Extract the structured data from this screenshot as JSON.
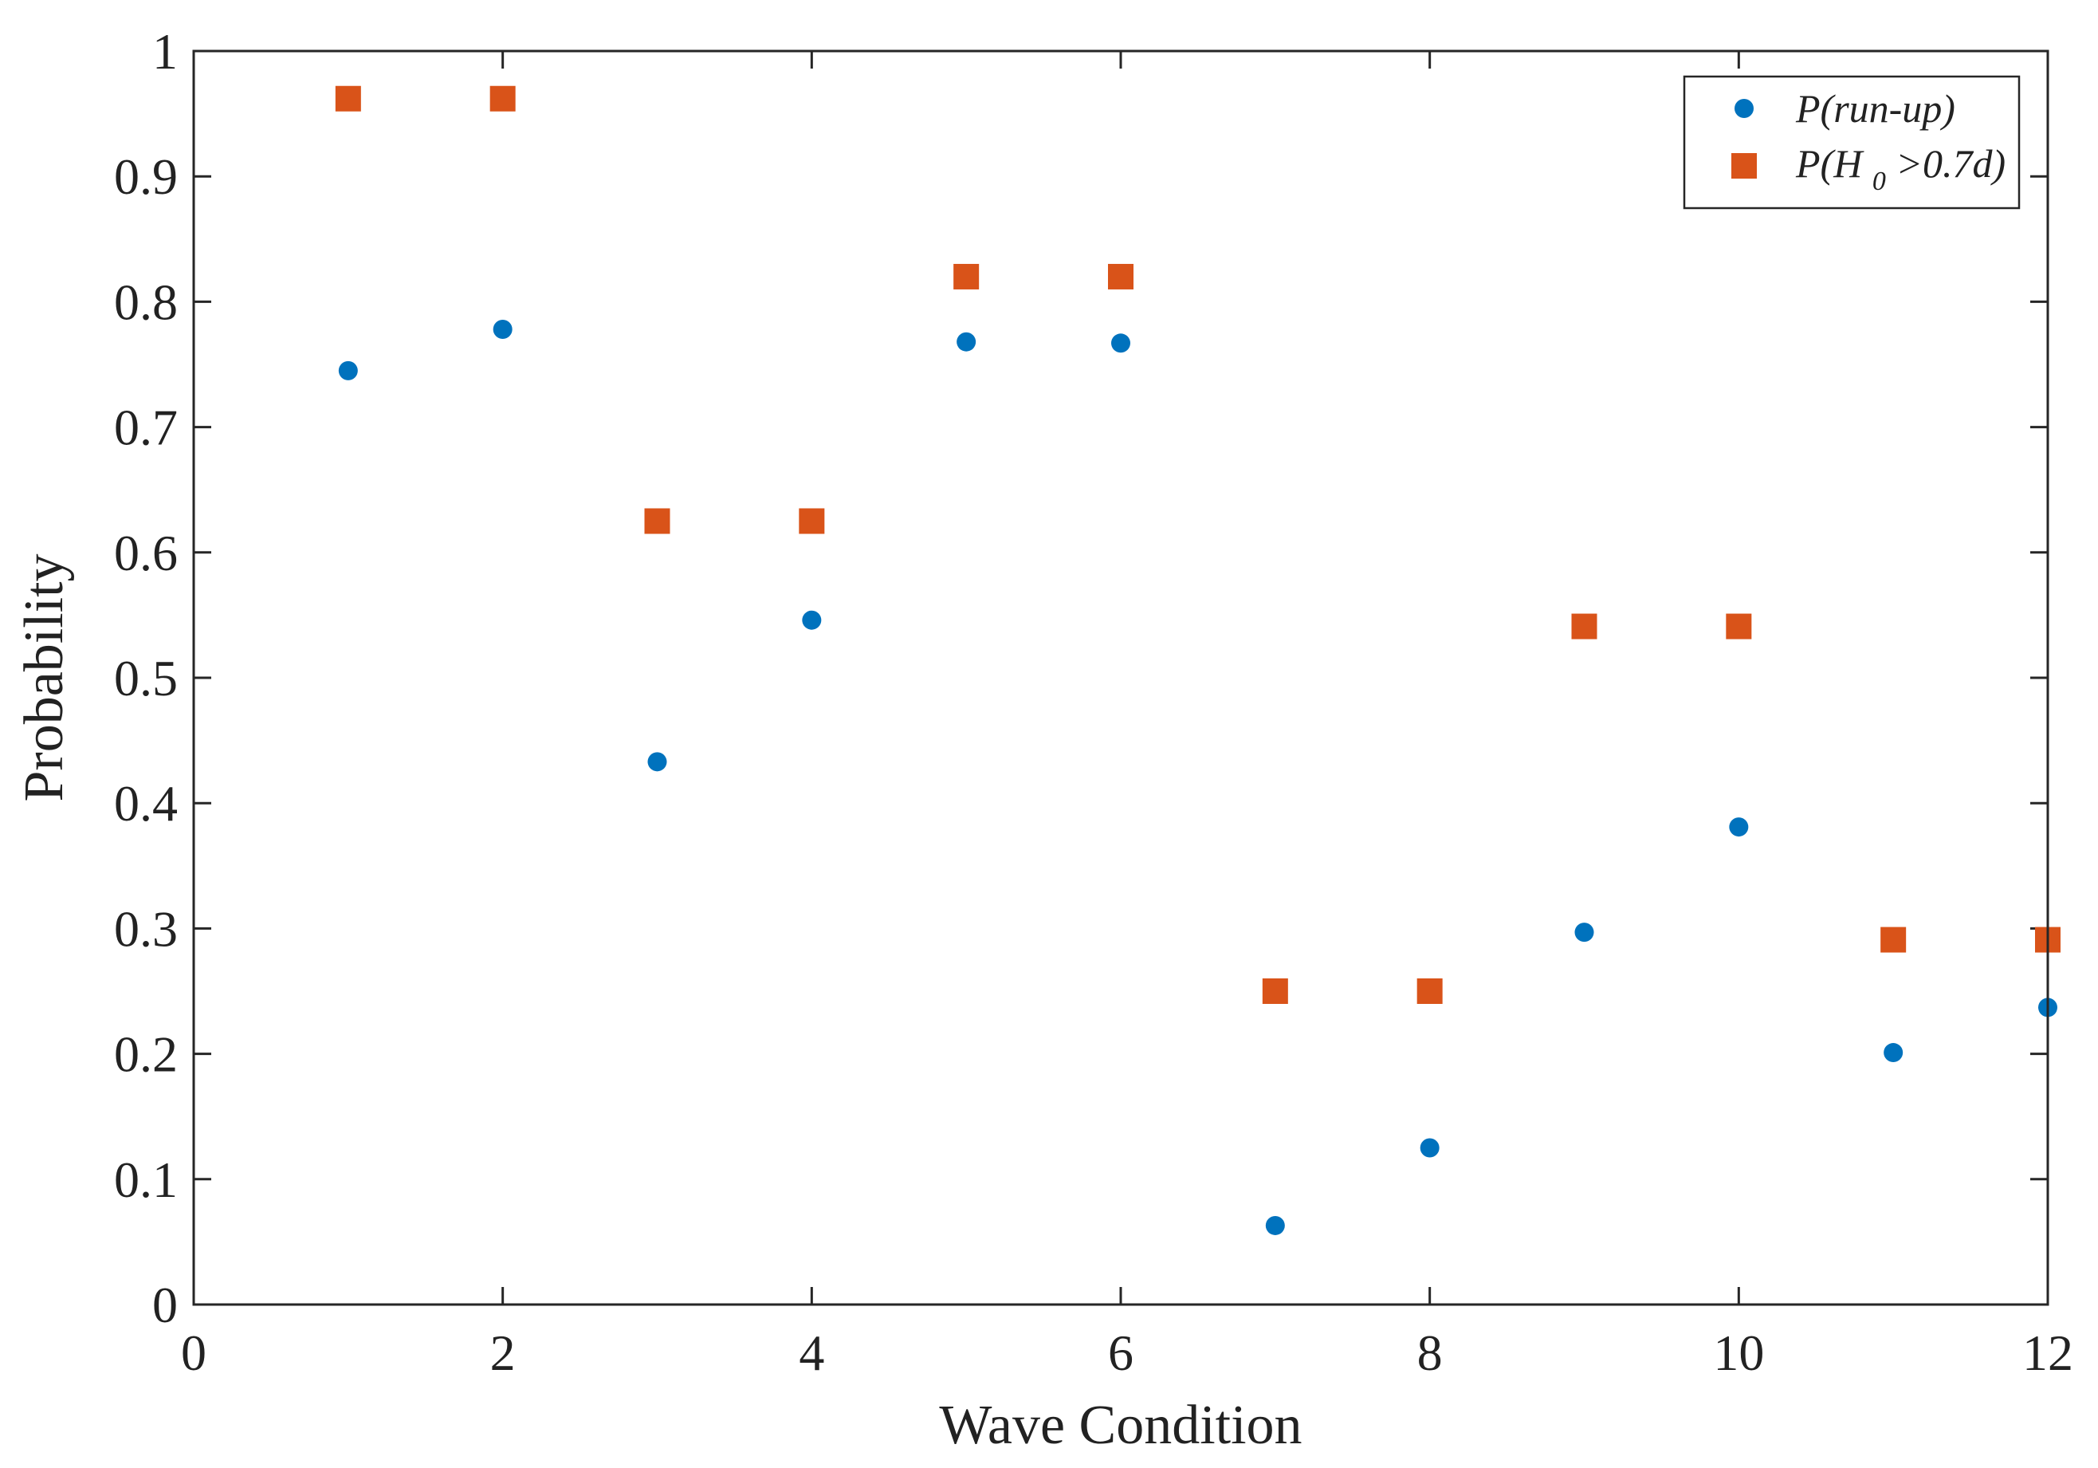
{
  "chart_data": {
    "type": "scatter",
    "title": "",
    "xlabel": "Wave Condition",
    "ylabel": "Probability",
    "xlim": [
      0,
      12
    ],
    "ylim": [
      0,
      1
    ],
    "xticks": [
      0,
      2,
      4,
      6,
      8,
      10,
      12
    ],
    "yticks": [
      0,
      0.1,
      0.2,
      0.3,
      0.4,
      0.5,
      0.6,
      0.7,
      0.8,
      0.9,
      1
    ],
    "x_tick_labels": [
      "0",
      "2",
      "4",
      "6",
      "8",
      "10",
      "12"
    ],
    "y_tick_labels": [
      "0",
      "0.1",
      "0.2",
      "0.3",
      "0.4",
      "0.5",
      "0.6",
      "0.7",
      "0.8",
      "0.9",
      "1"
    ],
    "grid": false,
    "legend_position": "top-right",
    "series": [
      {
        "name": "P(run-up)",
        "marker": "circle",
        "color": "#0072BD",
        "x": [
          1,
          2,
          3,
          4,
          5,
          6,
          7,
          8,
          9,
          10,
          11,
          12
        ],
        "y": [
          0.745,
          0.778,
          0.433,
          0.546,
          0.768,
          0.767,
          0.063,
          0.125,
          0.297,
          0.381,
          0.201,
          0.237
        ]
      },
      {
        "name": "P(H0>0.7d)",
        "marker": "square",
        "color": "#D95319",
        "x": [
          1,
          2,
          3,
          4,
          5,
          6,
          7,
          8,
          9,
          10,
          11,
          12
        ],
        "y": [
          0.962,
          0.962,
          0.625,
          0.625,
          0.82,
          0.82,
          0.25,
          0.25,
          0.541,
          0.541,
          0.291,
          0.291
        ]
      }
    ],
    "legend_entries": [
      {
        "prefix": "P(run-up)",
        "sub": "",
        "suffix": ""
      },
      {
        "prefix": "P(H",
        "sub": "0",
        "suffix": ">0.7d)"
      }
    ]
  }
}
